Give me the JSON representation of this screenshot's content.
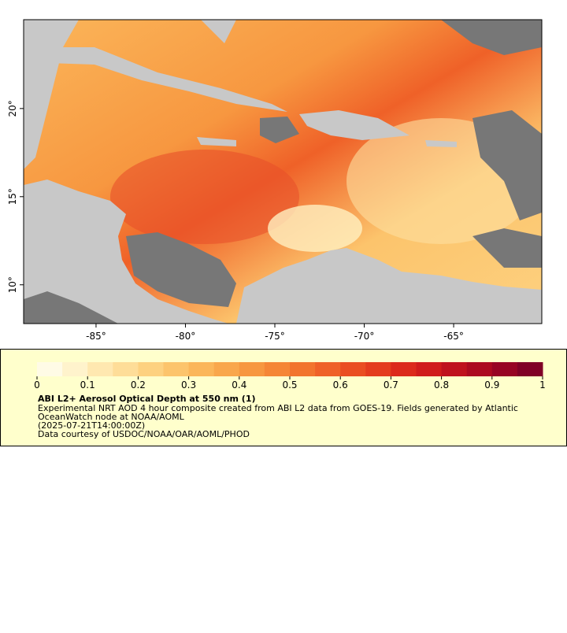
{
  "map": {
    "xlim": [
      -89.05,
      -60.07
    ],
    "ylim": [
      7.8,
      25.04
    ],
    "xticks": [
      {
        "value": -85,
        "label": "-85°"
      },
      {
        "value": -80,
        "label": "-80°"
      },
      {
        "value": -75,
        "label": "-75°"
      },
      {
        "value": -70,
        "label": "-70°"
      },
      {
        "value": -65,
        "label": "-65°"
      }
    ],
    "yticks": [
      {
        "value": 10,
        "label": "10°"
      },
      {
        "value": 15,
        "label": "15°"
      },
      {
        "value": 20,
        "label": "20°"
      }
    ]
  },
  "colorbar": {
    "lim": [
      0,
      1
    ],
    "ticks": [
      0,
      0.1,
      0.2,
      0.3,
      0.4,
      0.5,
      0.6,
      0.7,
      0.8,
      0.9,
      1
    ],
    "colors": [
      "#fffbe6",
      "#fff3cc",
      "#ffe8b0",
      "#fedd98",
      "#fdd180",
      "#fcc46c",
      "#fbb65a",
      "#f9a74c",
      "#f79740",
      "#f58636",
      "#f2742e",
      "#ef6128",
      "#ea4e22",
      "#e43c1e",
      "#dc2a1c",
      "#d01c1c",
      "#bf121e",
      "#ac0a20",
      "#970424",
      "#800026"
    ]
  },
  "legend": {
    "title": "ABI L2+ Aerosol Optical Depth at 550 nm (1)",
    "lines": [
      "Experimental NRT AOD 4 hour composite created from ABI L2 data from GOES-19. Fields generated by Atlantic",
      "OceanWatch node at NOAA/AOML",
      "(2025-07-21T14:00:00Z)",
      "Data courtesy of USDOC/NOAA/OAR/AOML/PHOD"
    ]
  }
}
